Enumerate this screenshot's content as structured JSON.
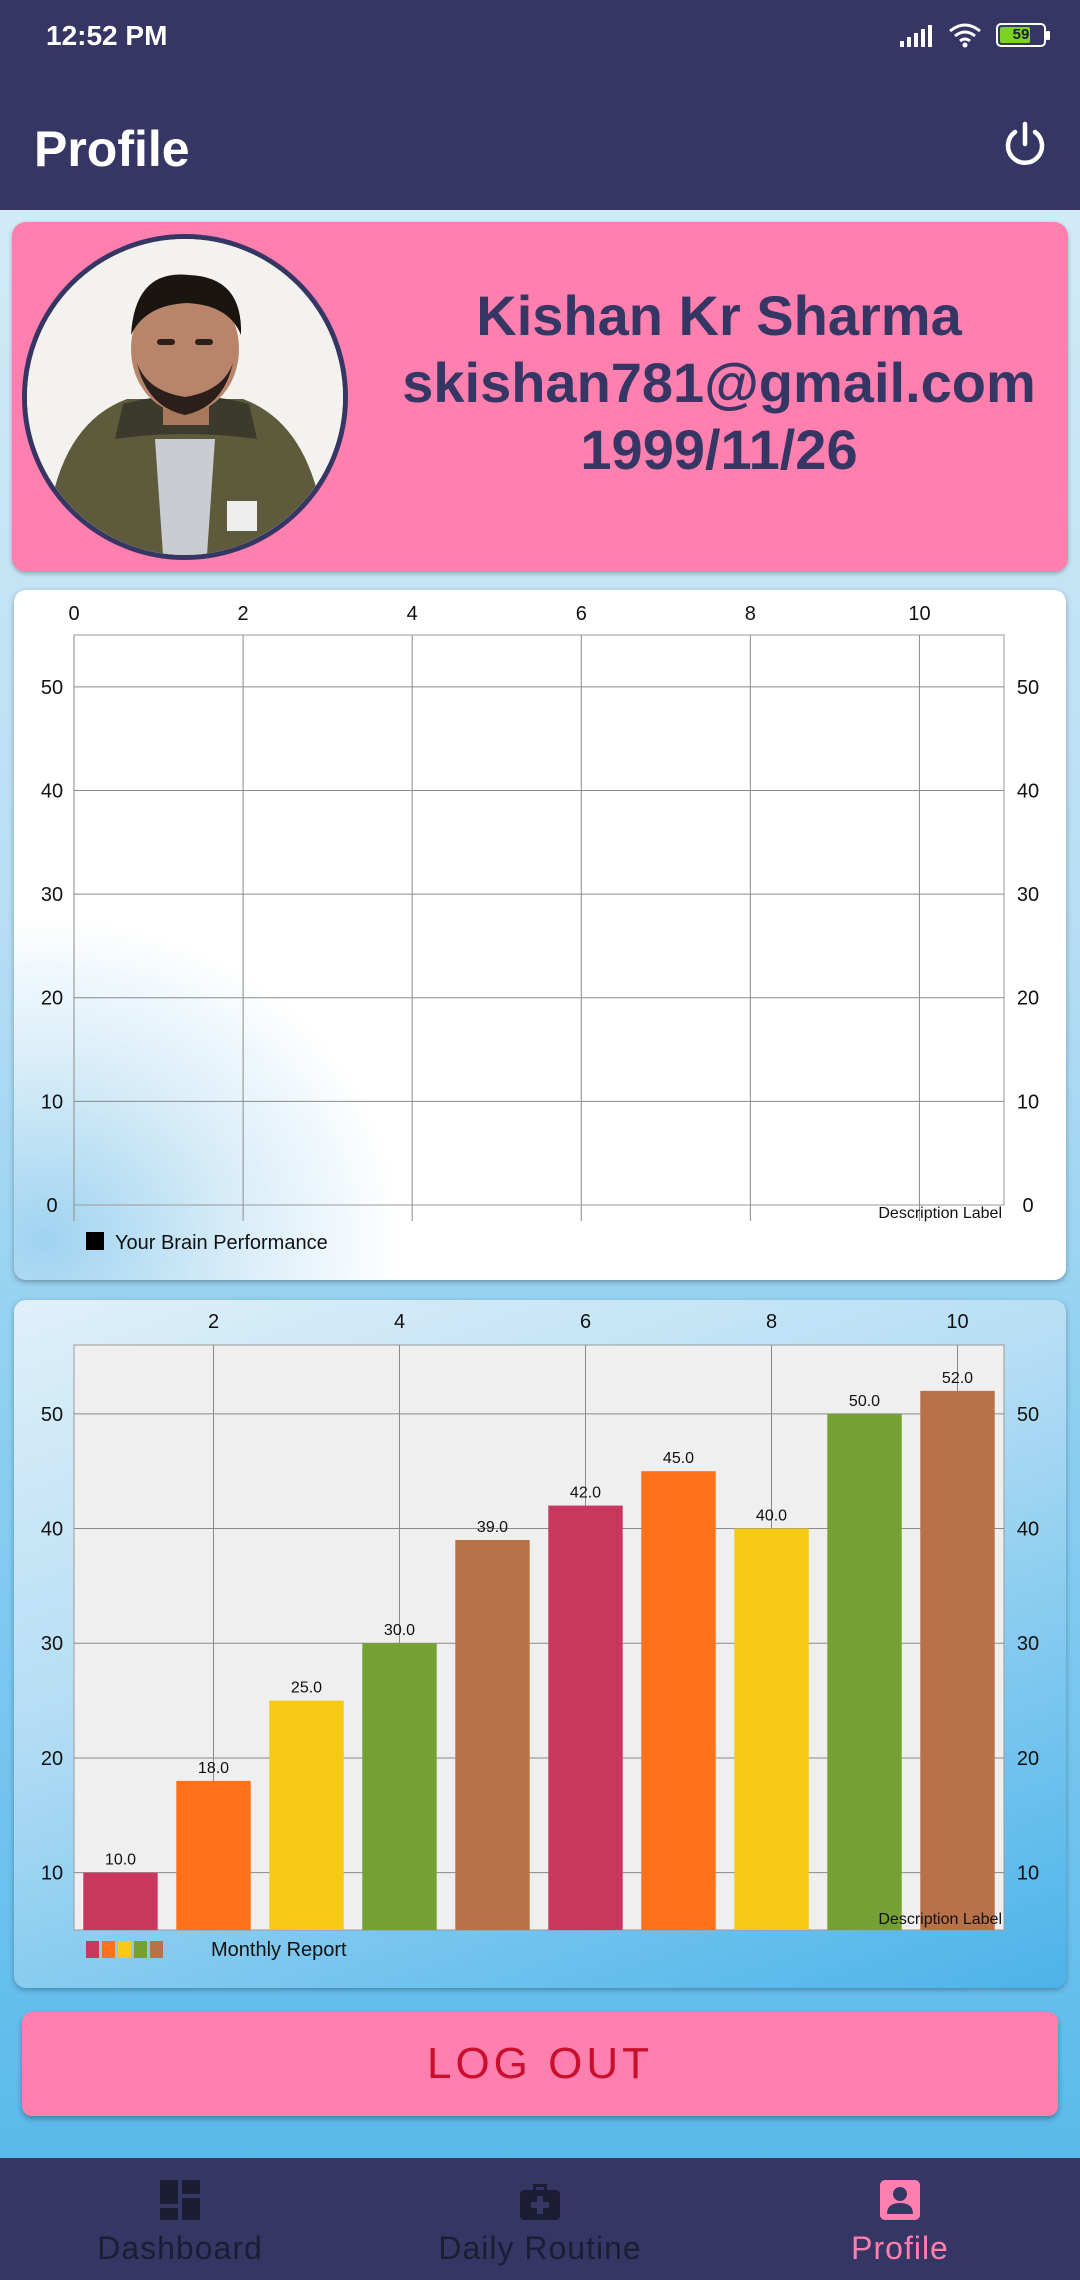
{
  "status_bar": {
    "time": "12:52 PM",
    "battery": "59"
  },
  "app_bar": {
    "title": "Profile"
  },
  "profile": {
    "name": "Kishan Kr Sharma",
    "email": "skishan781@gmail.com",
    "dob": "1999/11/26"
  },
  "chart_data": [
    {
      "type": "line",
      "x_ticks": [
        "0",
        "2",
        "4",
        "6",
        "8",
        "10"
      ],
      "y_ticks": [
        "0",
        "10",
        "20",
        "30",
        "40",
        "50"
      ],
      "xlim": [
        0,
        11
      ],
      "ylim": [
        0,
        55
      ],
      "description": "Description Label",
      "legend": [
        "Your Brain Performance"
      ],
      "series": [
        {
          "name": "Your Brain Performance",
          "values": []
        }
      ],
      "grid": true
    },
    {
      "type": "bar",
      "x": [
        1,
        2,
        3,
        4,
        5,
        6,
        7,
        8,
        9,
        10
      ],
      "values": [
        10,
        18,
        25,
        30,
        39,
        42,
        45,
        40,
        50,
        52
      ],
      "value_labels": [
        "10.0",
        "18.0",
        "25.0",
        "30.0",
        "39.0",
        "42.0",
        "45.0",
        "40.0",
        "50.0",
        "52.0"
      ],
      "colors": [
        "#c9375f",
        "#ff7119",
        "#f5c914",
        "#75a034",
        "#b8724a",
        "#c9375f",
        "#ff7119",
        "#f5c914",
        "#75a034",
        "#b8724a"
      ],
      "x_ticks": [
        "2",
        "4",
        "6",
        "8",
        "10"
      ],
      "y_ticks": [
        "10",
        "20",
        "30",
        "40",
        "50"
      ],
      "xlim": [
        0.5,
        10.5
      ],
      "ylim": [
        5,
        56
      ],
      "description": "Description Label",
      "legend": [
        "Monthly Report"
      ],
      "grid": true
    }
  ],
  "actions": {
    "logout_label": "LOG OUT"
  },
  "bottom_nav": [
    {
      "label": "Dashboard",
      "icon": "dashboard-icon"
    },
    {
      "label": "Daily Routine",
      "icon": "medical-bag-icon"
    },
    {
      "label": "Profile",
      "icon": "profile-icon"
    }
  ]
}
